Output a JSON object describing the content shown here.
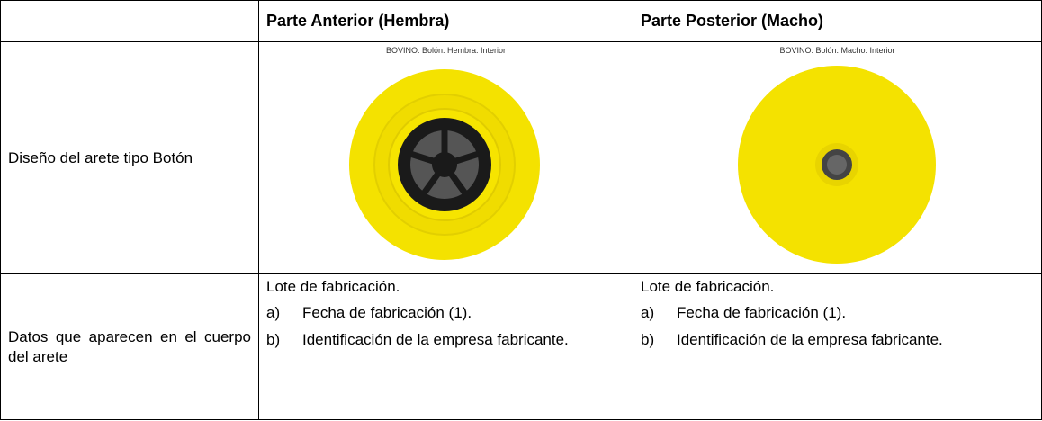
{
  "table": {
    "header": {
      "part_front": "Parte Anterior (Hembra)",
      "part_back": "Parte Posterior (Macho)"
    },
    "design_row": {
      "label": "Diseño del arete tipo Botón",
      "front_caption": "BOVINO. Bolón. Hembra. Interior",
      "back_caption": "BOVINO. Bolón. Macho. Interior"
    },
    "data_row": {
      "label": "Datos que aparecen en el cuerpo del arete",
      "front": {
        "intro": "Lote de fabricación.",
        "items": [
          {
            "marker": "a)",
            "text": "Fecha de fabricación (1)."
          },
          {
            "marker": "b)",
            "text": "Identificación de la empresa fabricante."
          }
        ]
      },
      "back": {
        "intro": "Lote de fabricación.",
        "items": [
          {
            "marker": "a)",
            "text": "Fecha de fabricación (1)."
          },
          {
            "marker": "b)",
            "text": "Identificación de la empresa fabricante."
          }
        ]
      }
    }
  }
}
